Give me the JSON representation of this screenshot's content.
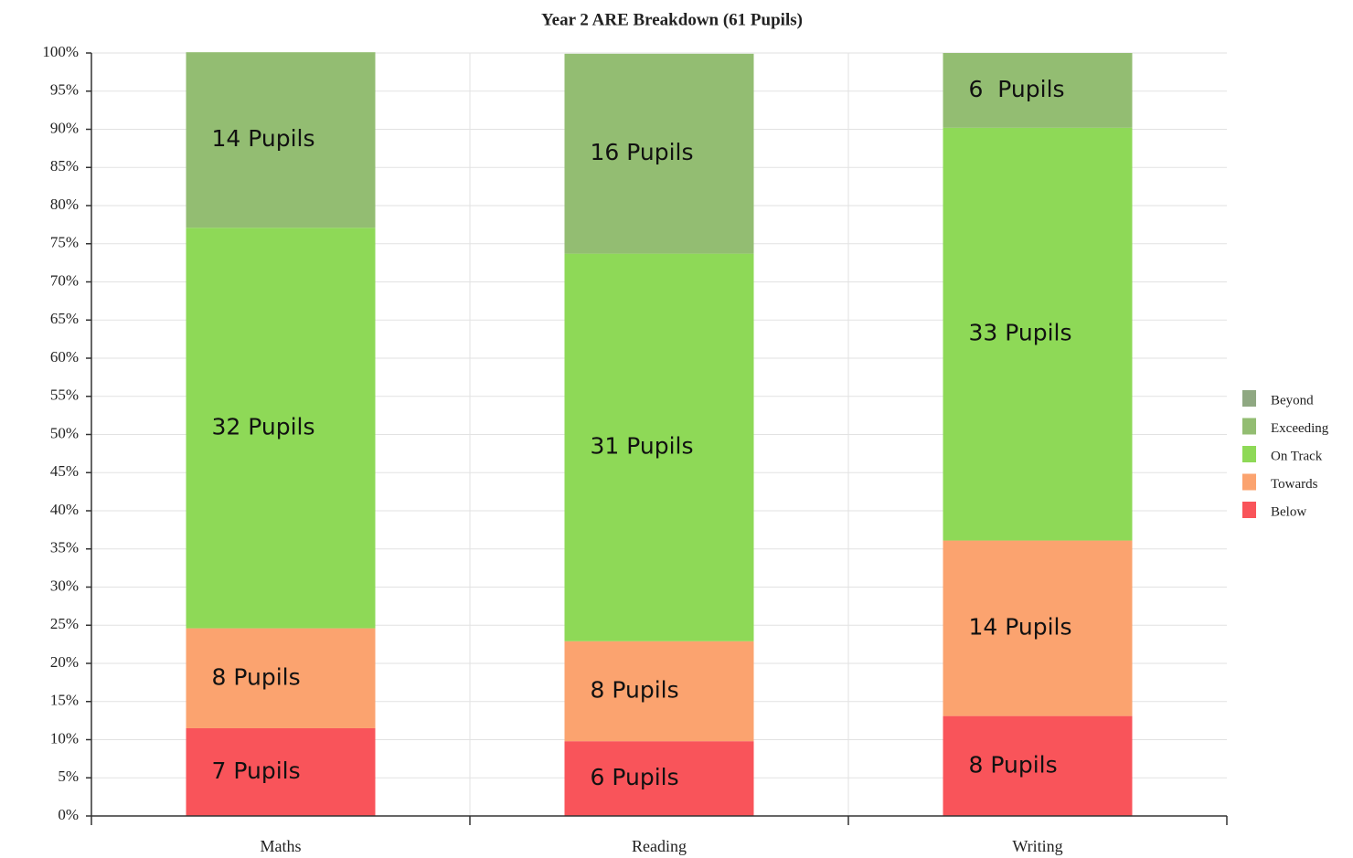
{
  "chart_data": {
    "type": "stacked_bar",
    "title": "Year 2 ARE Breakdown (61 Pupils)",
    "categories": [
      "Maths",
      "Reading",
      "Writing"
    ],
    "series": [
      {
        "name": "Beyond",
        "color": "#8fa882",
        "values": [
          0,
          0,
          0
        ]
      },
      {
        "name": "Exceeding",
        "color": "#93bd72",
        "values": [
          23.0,
          26.2,
          9.8
        ],
        "value_labels": [
          "14 Pupils",
          "16 Pupils",
          "6  Pupils"
        ]
      },
      {
        "name": "On Track",
        "color": "#8ed957",
        "values": [
          52.5,
          50.8,
          54.1
        ],
        "value_labels": [
          "32 Pupils",
          "31 Pupils",
          "33 Pupils"
        ]
      },
      {
        "name": "Towards",
        "color": "#fba36f",
        "values": [
          13.1,
          13.1,
          23.0
        ],
        "value_labels": [
          "8 Pupils",
          "8 Pupils",
          "14 Pupils"
        ]
      },
      {
        "name": "Below",
        "color": "#f9545a",
        "values": [
          11.5,
          9.8,
          13.1
        ],
        "value_labels": [
          "7 Pupils",
          "6 Pupils",
          "8 Pupils"
        ]
      }
    ],
    "ylim": [
      0,
      100
    ],
    "yticks": [
      {
        "value": 0,
        "label": "0%"
      },
      {
        "value": 5,
        "label": "5%"
      },
      {
        "value": 10,
        "label": "10%"
      },
      {
        "value": 15,
        "label": "15%"
      },
      {
        "value": 20,
        "label": "20%"
      },
      {
        "value": 25,
        "label": "25%"
      },
      {
        "value": 30,
        "label": "30%"
      },
      {
        "value": 35,
        "label": "35%"
      },
      {
        "value": 40,
        "label": "40%"
      },
      {
        "value": 45,
        "label": "45%"
      },
      {
        "value": 50,
        "label": "50%"
      },
      {
        "value": 55,
        "label": "55%"
      },
      {
        "value": 60,
        "label": "60%"
      },
      {
        "value": 65,
        "label": "65%"
      },
      {
        "value": 70,
        "label": "70%"
      },
      {
        "value": 75,
        "label": "75%"
      },
      {
        "value": 80,
        "label": "80%"
      },
      {
        "value": 85,
        "label": "85%"
      },
      {
        "value": 90,
        "label": "90%"
      },
      {
        "value": 95,
        "label": "95%"
      },
      {
        "value": 100,
        "label": "100%"
      }
    ],
    "grid": true,
    "legend": "right"
  }
}
